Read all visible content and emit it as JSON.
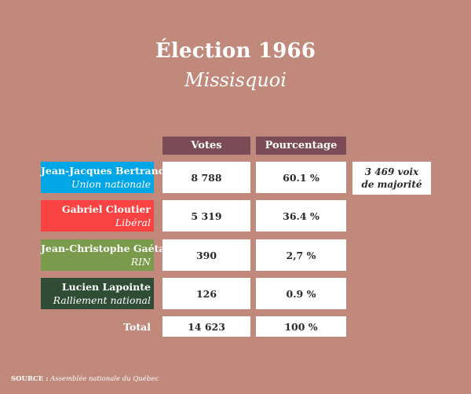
{
  "title": "Élection 1966",
  "subtitle": "Missisquoi",
  "headers": {
    "votes": "Votes",
    "percentage": "Pourcentage"
  },
  "rows": [
    {
      "name": "Jean-Jacques Bertrand",
      "party": "Union nationale",
      "votes": "8 788",
      "percentage": "60.1 %",
      "color": "#00a6e6"
    },
    {
      "name": "Gabriel Cloutier",
      "party": "Libéral",
      "votes": "5 319",
      "percentage": "36.4 %",
      "color": "#f94343"
    },
    {
      "name": "Jean-Christophe Gaétan",
      "party": "RIN",
      "votes": "390",
      "percentage": "2,7 %",
      "color": "#7a9a4c"
    },
    {
      "name": "Lucien Lapointe",
      "party": "Ralliement national",
      "votes": "126",
      "percentage": "0.9 %",
      "color": "#2f4d35"
    }
  ],
  "majority_note": "3 469 voix de majorité",
  "total": {
    "label": "Total",
    "votes": "14 623",
    "percentage": "100 %"
  },
  "source": {
    "label": "SOURCE :",
    "text": "Assemblée nationale du Québec"
  }
}
